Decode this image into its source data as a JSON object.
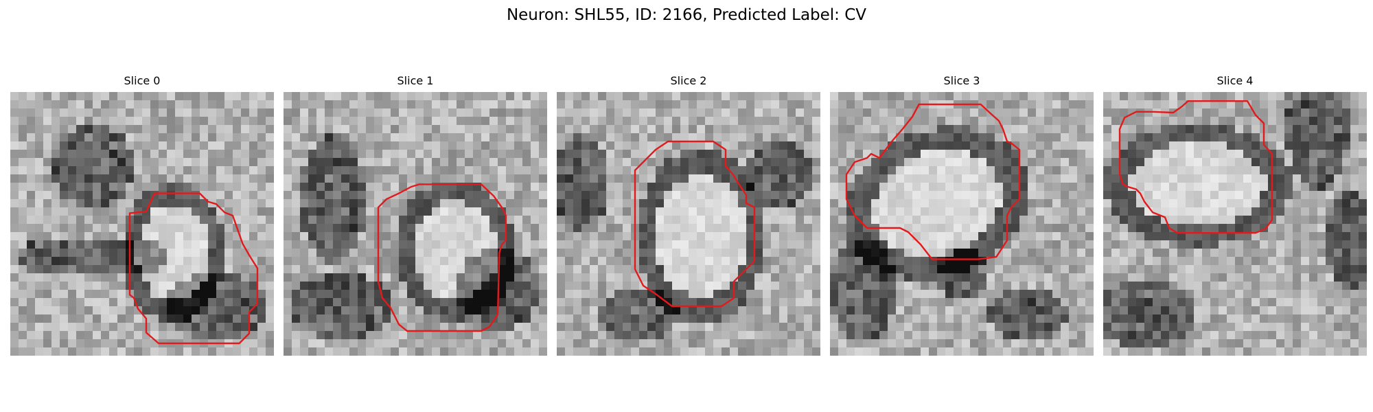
{
  "figure": {
    "title": "Neuron: SHL55, ID: 2166, Predicted Label: CV"
  },
  "panels": [
    {
      "title": "Slice 0"
    },
    {
      "title": "Slice 1"
    },
    {
      "title": "Slice 2"
    },
    {
      "title": "Slice 3"
    },
    {
      "title": "Slice 4"
    }
  ],
  "colors": {
    "contour": "#e31a1c",
    "background": "#ffffff"
  }
}
